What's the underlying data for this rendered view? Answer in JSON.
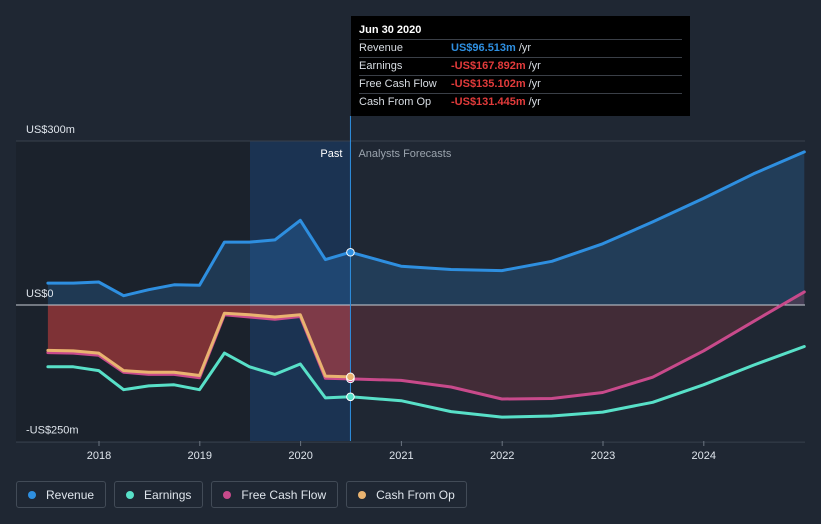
{
  "chart_data": {
    "type": "line",
    "y_unit": "US$m",
    "ylim": [
      -250,
      300
    ],
    "y_ticks": [
      {
        "label": "US$300m",
        "value": 300
      },
      {
        "label": "US$0",
        "value": 0
      },
      {
        "label": "-US$250m",
        "value": -250
      }
    ],
    "x_ticks": [
      "2018",
      "2019",
      "2020",
      "2021",
      "2022",
      "2023",
      "2024"
    ],
    "regions": {
      "past_label": "Past",
      "forecast_label": "Analysts Forecasts",
      "divider_date": "2020-06-30"
    },
    "series": [
      {
        "name": "Revenue",
        "color": "#2e8fe0",
        "points": [
          [
            "2017-06-30",
            40
          ],
          [
            "2017-09-30",
            40
          ],
          [
            "2017-12-31",
            42
          ],
          [
            "2018-03-31",
            17
          ],
          [
            "2018-06-30",
            28
          ],
          [
            "2018-09-30",
            37
          ],
          [
            "2018-12-31",
            36
          ],
          [
            "2019-03-31",
            115
          ],
          [
            "2019-06-30",
            115
          ],
          [
            "2019-09-30",
            119
          ],
          [
            "2019-12-31",
            155
          ],
          [
            "2020-03-31",
            83
          ],
          [
            "2020-06-30",
            96.513
          ],
          [
            "2020-12-31",
            71
          ],
          [
            "2021-06-30",
            65
          ],
          [
            "2021-12-31",
            63
          ],
          [
            "2022-06-30",
            80
          ],
          [
            "2022-12-31",
            112
          ],
          [
            "2023-06-30",
            152
          ],
          [
            "2023-12-31",
            195
          ],
          [
            "2024-06-30",
            240
          ],
          [
            "2024-12-31",
            280
          ]
        ]
      },
      {
        "name": "Earnings",
        "color": "#58e0c8",
        "points": [
          [
            "2017-06-30",
            -113
          ],
          [
            "2017-09-30",
            -113
          ],
          [
            "2017-12-31",
            -120
          ],
          [
            "2018-03-31",
            -155
          ],
          [
            "2018-06-30",
            -148
          ],
          [
            "2018-09-30",
            -146
          ],
          [
            "2018-12-31",
            -155
          ],
          [
            "2019-03-31",
            -88
          ],
          [
            "2019-06-30",
            -113
          ],
          [
            "2019-09-30",
            -127
          ],
          [
            "2019-12-31",
            -108
          ],
          [
            "2020-03-31",
            -170
          ],
          [
            "2020-06-30",
            -167.892
          ],
          [
            "2020-12-31",
            -175
          ],
          [
            "2021-06-30",
            -195
          ],
          [
            "2021-12-31",
            -205
          ],
          [
            "2022-06-30",
            -203
          ],
          [
            "2022-12-31",
            -196
          ],
          [
            "2023-06-30",
            -178
          ],
          [
            "2023-12-31",
            -146
          ],
          [
            "2024-06-30",
            -110
          ],
          [
            "2024-12-31",
            -76
          ]
        ]
      },
      {
        "name": "Free Cash Flow",
        "color": "#c84a8b",
        "points": [
          [
            "2017-06-30",
            -87
          ],
          [
            "2017-09-30",
            -88
          ],
          [
            "2017-12-31",
            -92
          ],
          [
            "2018-03-31",
            -123
          ],
          [
            "2018-06-30",
            -127
          ],
          [
            "2018-09-30",
            -127
          ],
          [
            "2018-12-31",
            -133
          ],
          [
            "2019-03-31",
            -18
          ],
          [
            "2019-06-30",
            -22
          ],
          [
            "2019-09-30",
            -26
          ],
          [
            "2019-12-31",
            -21
          ],
          [
            "2020-03-31",
            -134
          ],
          [
            "2020-06-30",
            -135.102
          ],
          [
            "2020-12-31",
            -138
          ],
          [
            "2021-06-30",
            -150
          ],
          [
            "2021-12-31",
            -172
          ],
          [
            "2022-06-30",
            -171
          ],
          [
            "2022-12-31",
            -160
          ],
          [
            "2023-06-30",
            -132
          ],
          [
            "2023-12-31",
            -84
          ],
          [
            "2024-06-30",
            -30
          ],
          [
            "2024-12-31",
            24
          ]
        ]
      },
      {
        "name": "Cash From Op",
        "color": "#e9b370",
        "points": [
          [
            "2017-06-30",
            -83
          ],
          [
            "2017-09-30",
            -84
          ],
          [
            "2017-12-31",
            -88
          ],
          [
            "2018-03-31",
            -120
          ],
          [
            "2018-06-30",
            -123
          ],
          [
            "2018-09-30",
            -123
          ],
          [
            "2018-12-31",
            -129
          ],
          [
            "2019-03-31",
            -15
          ],
          [
            "2019-06-30",
            -18
          ],
          [
            "2019-09-30",
            -22
          ],
          [
            "2019-12-31",
            -18
          ],
          [
            "2020-03-31",
            -130
          ],
          [
            "2020-06-30",
            -131.445
          ]
        ]
      }
    ]
  },
  "tooltip": {
    "date": "Jun 30 2020",
    "rows": [
      {
        "label": "Revenue",
        "value": "US$96.513m",
        "unit": "/yr",
        "color": "#2e8fe0"
      },
      {
        "label": "Earnings",
        "value": "-US$167.892m",
        "unit": "/yr",
        "color": "#e23b3b"
      },
      {
        "label": "Free Cash Flow",
        "value": "-US$135.102m",
        "unit": "/yr",
        "color": "#e23b3b"
      },
      {
        "label": "Cash From Op",
        "value": "-US$131.445m",
        "unit": "/yr",
        "color": "#e23b3b"
      }
    ]
  },
  "legend": [
    {
      "label": "Revenue",
      "color": "#2e8fe0"
    },
    {
      "label": "Earnings",
      "color": "#58e0c8"
    },
    {
      "label": "Free Cash Flow",
      "color": "#c84a8b"
    },
    {
      "label": "Cash From Op",
      "color": "#e9b370"
    }
  ]
}
